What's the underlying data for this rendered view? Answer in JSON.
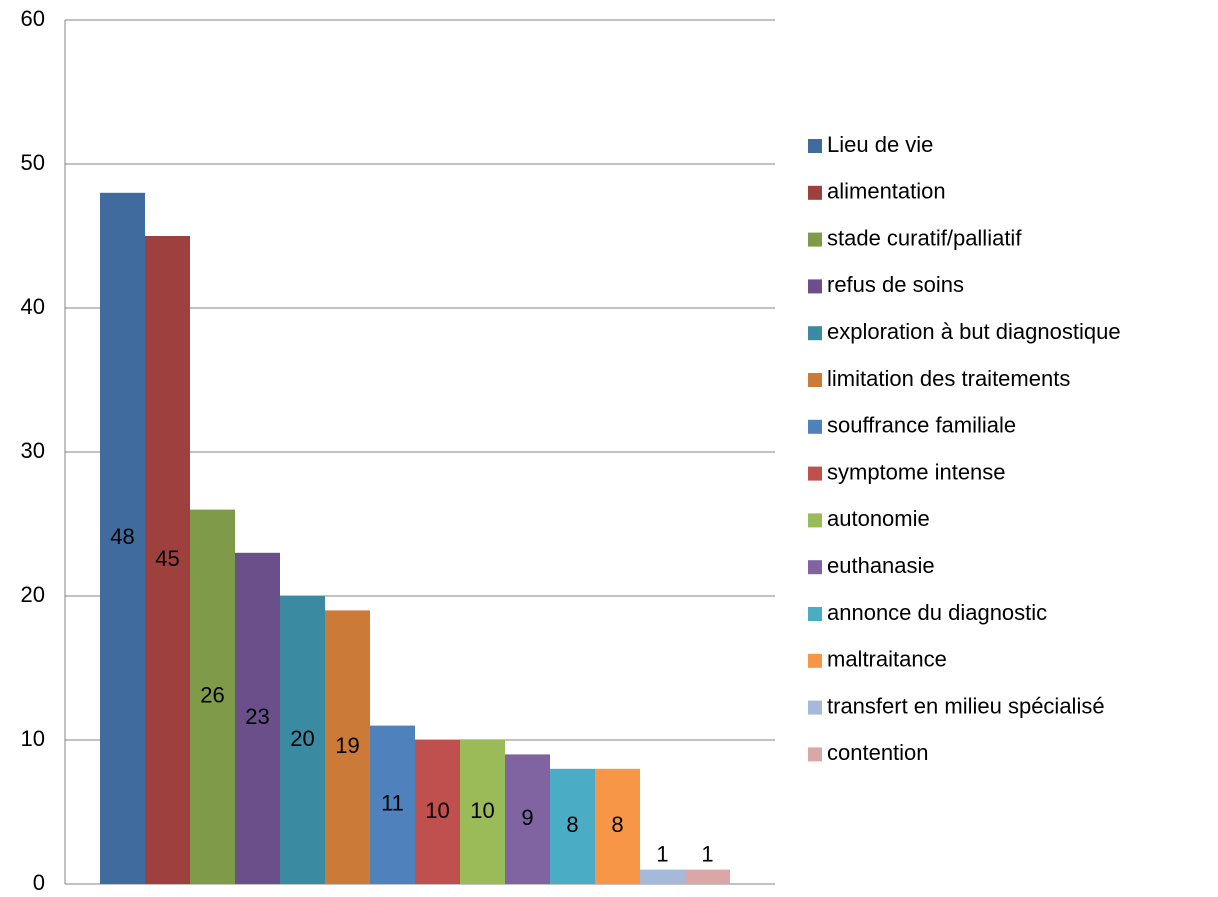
{
  "chart_data": {
    "type": "bar",
    "categories": [
      null
    ],
    "series": [
      {
        "name": "Lieu de vie",
        "color": "#3f6b9e",
        "values": [
          48
        ]
      },
      {
        "name": "alimentation",
        "color": "#9e413e",
        "values": [
          45
        ]
      },
      {
        "name": "stade curatif/palliatif",
        "color": "#7f9a48",
        "values": [
          26
        ]
      },
      {
        "name": "refus de soins",
        "color": "#6a4f8a",
        "values": [
          23
        ]
      },
      {
        "name": "exploration à but diagnostique",
        "color": "#3a8ba1",
        "values": [
          20
        ]
      },
      {
        "name": "limitation des traitements",
        "color": "#cc7a37",
        "values": [
          19
        ]
      },
      {
        "name": "souffrance familiale",
        "color": "#4f81bd",
        "values": [
          11
        ]
      },
      {
        "name": "symptome intense",
        "color": "#c0504d",
        "values": [
          10
        ]
      },
      {
        "name": "autonomie",
        "color": "#9bbb59",
        "values": [
          10
        ]
      },
      {
        "name": "euthanasie",
        "color": "#8064a2",
        "values": [
          9
        ]
      },
      {
        "name": "annonce du diagnostic",
        "color": "#4bacc6",
        "values": [
          8
        ]
      },
      {
        "name": "maltraitance",
        "color": "#f79646",
        "values": [
          8
        ]
      },
      {
        "name": "transfert en milieu spécialisé",
        "color": "#a7b9d9",
        "values": [
          1
        ]
      },
      {
        "name": "contention",
        "color": "#d9a7a6",
        "values": [
          1
        ]
      }
    ],
    "ylim": [
      0,
      60
    ],
    "yticks": [
      0,
      10,
      20,
      30,
      40,
      50,
      60
    ],
    "grid": true,
    "legend": "right"
  }
}
